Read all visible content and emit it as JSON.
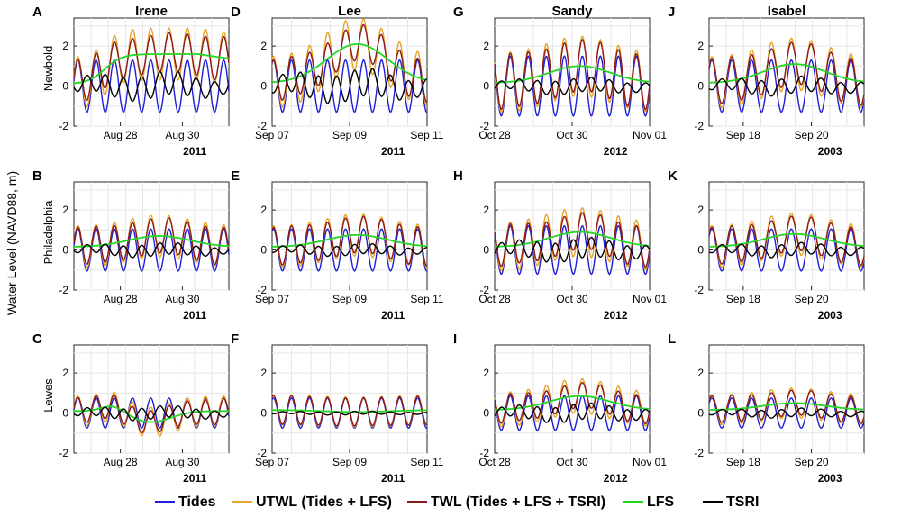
{
  "chart_data": {
    "type": "line",
    "y_axis_label": "Water Level   (NAVD88, m)",
    "ylim": [
      -2,
      3.4
    ],
    "yticks": [
      "-2",
      "0",
      "2"
    ],
    "grid": true,
    "series_names": [
      "Tides",
      "UTWL (Tides + LFS)",
      "TWL (Tides + LFS + TSRI)",
      "LFS",
      "TSRI"
    ],
    "series_colors": [
      "#1f1fd6",
      "#e6a52a",
      "#8b1a1a",
      "#22d622",
      "#000000"
    ],
    "legend_position": "bottom",
    "columns": [
      {
        "title": "Irene",
        "xticks": [
          "Aug 28",
          "Aug 30"
        ],
        "year": "2011"
      },
      {
        "title": "Lee",
        "xticks": [
          "Sep 07",
          "Sep 09",
          "Sep 11"
        ],
        "year": "2011"
      },
      {
        "title": "Sandy",
        "xticks": [
          "Oct 28",
          "Oct 30",
          "Nov 01"
        ],
        "year": "2012"
      },
      {
        "title": "Isabel",
        "xticks": [
          "Sep 18",
          "Sep 20"
        ],
        "year": "2003"
      }
    ],
    "rows": [
      {
        "station": "Newbold",
        "tide_amplitude": 1.3,
        "lfs_peak": [
          1.6,
          2.1,
          1.0,
          1.1
        ],
        "tsri_amplitude": [
          0.6,
          0.7,
          0.35,
          0.4
        ]
      },
      {
        "station": "Philadelphia",
        "tide_amplitude": 1.05,
        "lfs_peak": [
          0.7,
          0.75,
          0.9,
          0.8
        ],
        "tsri_amplitude": [
          0.3,
          0.25,
          0.5,
          0.3
        ]
      },
      {
        "station": "Lewes",
        "tide_amplitude": 0.75,
        "lfs_peak": [
          -0.45,
          0.05,
          0.85,
          0.5
        ],
        "tsri_amplitude": [
          0.3,
          0.08,
          0.4,
          0.2
        ]
      }
    ],
    "panel_letters": [
      "A",
      "D",
      "G",
      "J",
      "B",
      "E",
      "H",
      "K",
      "C",
      "F",
      "I",
      "L"
    ]
  }
}
